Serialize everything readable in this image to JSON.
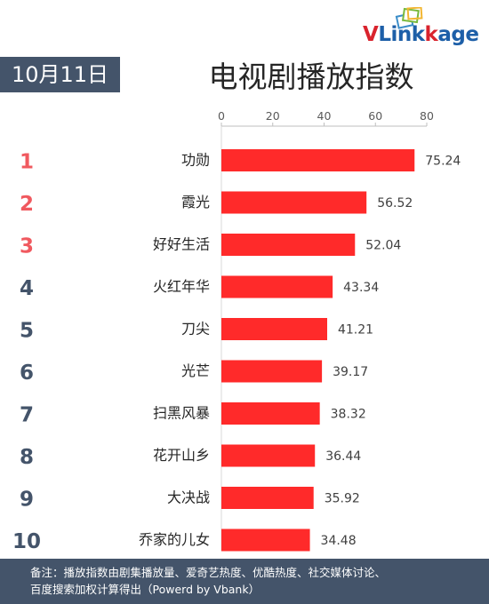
{
  "header": {
    "date": "10月11日",
    "title": "电视剧播放指数",
    "brand": {
      "v": "V",
      "l": "Link",
      "k": "k",
      "age": "age"
    }
  },
  "footer": {
    "line1": "备注：播放指数由剧集播放量、爱奇艺热度、优酷热度、社交媒体讨论、",
    "line2": "百度搜索加权计算得出（Powerd by Vbank）"
  },
  "colors": {
    "bar": "#ff2a2a",
    "rank_top": "#f0595f",
    "rank_rest": "#44546a",
    "header_bg": "#44546a",
    "brand_red": "#d9232d",
    "brand_blue": "#1d5fa8"
  },
  "chart_data": {
    "type": "bar",
    "orientation": "horizontal",
    "xlim": [
      0,
      80
    ],
    "xticks": [
      "0",
      "20",
      "40",
      "60",
      "80"
    ],
    "xtick_position": "top",
    "grid": false,
    "ranks": [
      "1",
      "2",
      "3",
      "4",
      "5",
      "6",
      "7",
      "8",
      "9",
      "10"
    ],
    "categories": [
      "功勋",
      "霞光",
      "好好生活",
      "火红年华",
      "刀尖",
      "光芒",
      "扫黑风暴",
      "花开山乡",
      "大决战",
      "乔家的儿女"
    ],
    "values": [
      75.24,
      56.52,
      52.04,
      43.34,
      41.21,
      39.17,
      38.32,
      36.44,
      35.92,
      34.48
    ],
    "value_labels": [
      "75.24",
      "56.52",
      "52.04",
      "43.34",
      "41.21",
      "39.17",
      "38.32",
      "36.44",
      "35.92",
      "34.48"
    ]
  }
}
